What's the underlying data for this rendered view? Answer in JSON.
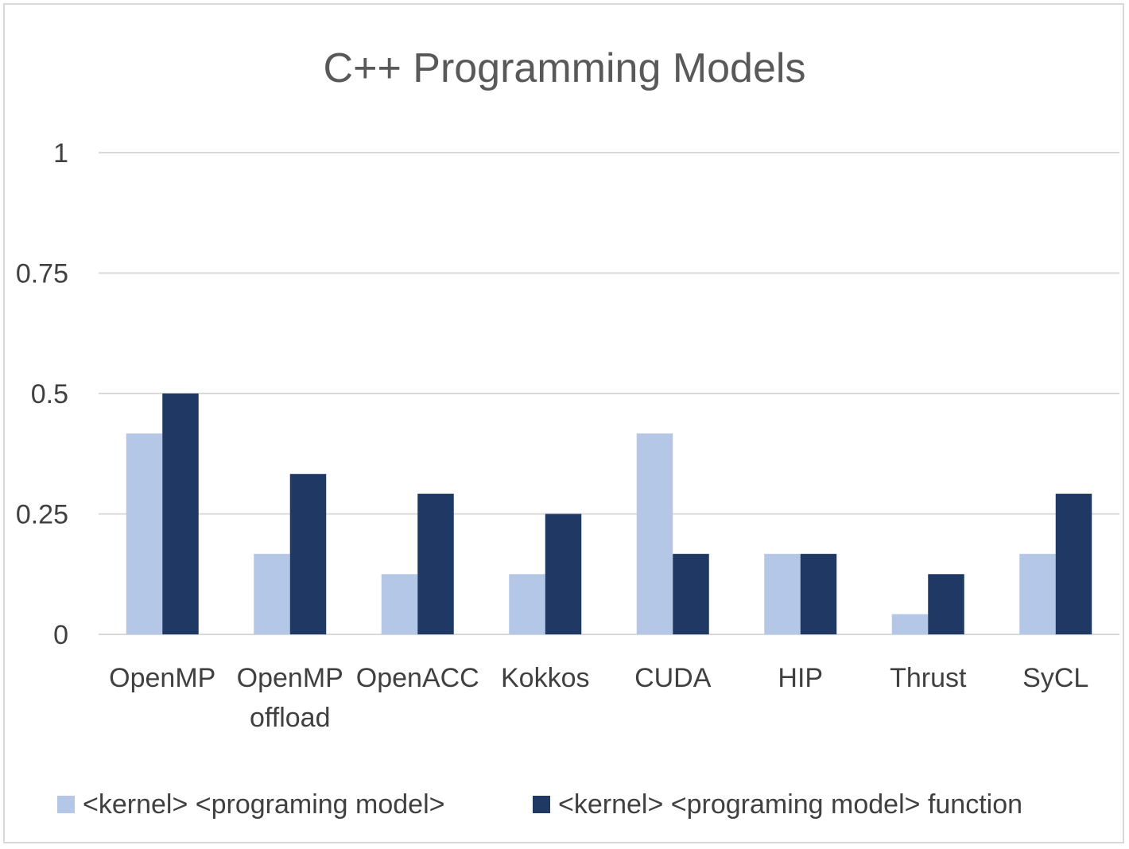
{
  "chart_data": {
    "type": "bar",
    "title": "C++ Programming Models",
    "xlabel": "",
    "ylabel": "",
    "ylim": [
      0,
      1
    ],
    "yticks": [
      {
        "value": 0,
        "label": "0"
      },
      {
        "value": 0.25,
        "label": "0.25"
      },
      {
        "value": 0.5,
        "label": "0.5"
      },
      {
        "value": 0.75,
        "label": "0.75"
      },
      {
        "value": 1,
        "label": "1"
      }
    ],
    "grid": true,
    "legend_position": "bottom",
    "categories": [
      [
        "OpenMP"
      ],
      [
        "OpenMP",
        "offload"
      ],
      [
        "OpenACC"
      ],
      [
        "Kokkos"
      ],
      [
        "CUDA"
      ],
      [
        "HIP"
      ],
      [
        "Thrust"
      ],
      [
        "SyCL"
      ]
    ],
    "series": [
      {
        "name": "<kernel> <programing model>",
        "color": "#b4c7e7",
        "values": [
          0.417,
          0.167,
          0.125,
          0.125,
          0.417,
          0.167,
          0.042,
          0.167
        ]
      },
      {
        "name": "<kernel> <programing model> function",
        "color": "#203864",
        "values": [
          0.5,
          0.333,
          0.292,
          0.25,
          0.167,
          0.167,
          0.125,
          0.292
        ]
      }
    ]
  }
}
